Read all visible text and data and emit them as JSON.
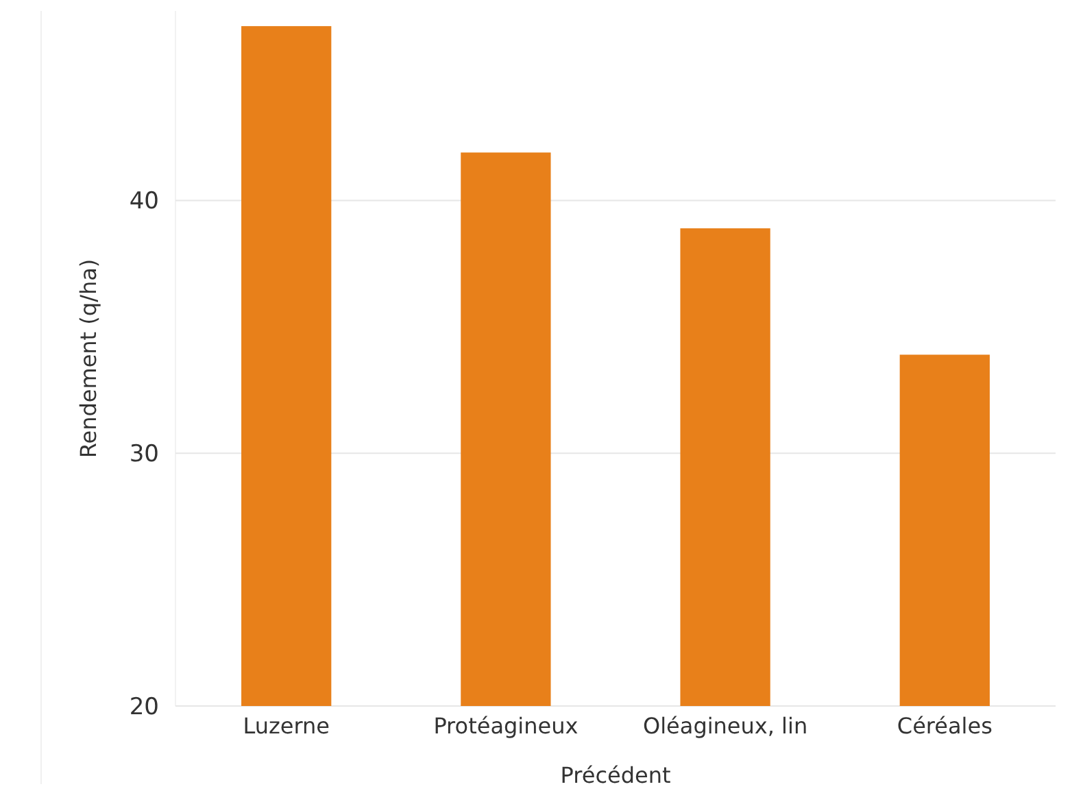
{
  "chart_data": {
    "type": "bar",
    "xlabel": "Précédent",
    "ylabel": "Rendement (q/ha)",
    "categories": [
      "Luzerne",
      "Protéagineux",
      "Oléagineux, lin",
      "Céréales"
    ],
    "values": [
      46.9,
      41.9,
      38.9,
      33.9
    ],
    "color": "#e8801a",
    "ylim": [
      20,
      47.5
    ],
    "yticks": [
      20,
      30,
      40
    ],
    "grid": "y"
  }
}
